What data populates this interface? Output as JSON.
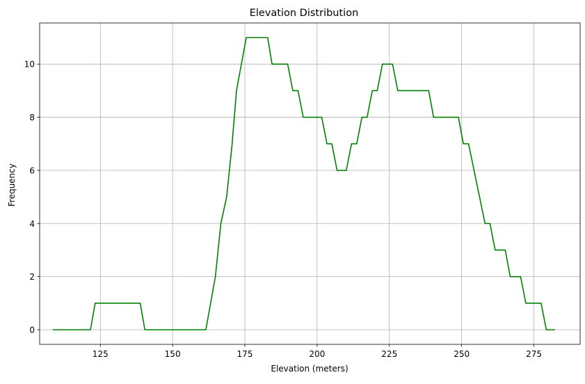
{
  "chart_data": {
    "type": "line",
    "title": "Elevation Distribution",
    "xlabel": "Elevation (meters)",
    "ylabel": "Frequency",
    "xlim": [
      104,
      291
    ],
    "ylim": [
      -0.55,
      11.55
    ],
    "xticks": [
      125,
      150,
      175,
      200,
      225,
      250,
      275
    ],
    "yticks": [
      0,
      2,
      4,
      6,
      8,
      10
    ],
    "grid": true,
    "legend": "none",
    "series": [
      {
        "color": "#008000",
        "points": [
          [
            108.7,
            0
          ],
          [
            121.6,
            0
          ],
          [
            123.2,
            1
          ],
          [
            138.8,
            1
          ],
          [
            140.4,
            0
          ],
          [
            161.5,
            0
          ],
          [
            164.8,
            2
          ],
          [
            166.7,
            4
          ],
          [
            168.7,
            5
          ],
          [
            170.6,
            7
          ],
          [
            172.1,
            9
          ],
          [
            175.5,
            11
          ],
          [
            182.9,
            11
          ],
          [
            184.4,
            10
          ],
          [
            189.8,
            10
          ],
          [
            191.6,
            9
          ],
          [
            193.4,
            9
          ],
          [
            195.2,
            8
          ],
          [
            201.6,
            8
          ],
          [
            203.4,
            7
          ],
          [
            205.1,
            7
          ],
          [
            206.9,
            6
          ],
          [
            210.1,
            6
          ],
          [
            211.9,
            7
          ],
          [
            213.7,
            7
          ],
          [
            215.5,
            8
          ],
          [
            217.3,
            8
          ],
          [
            219.1,
            9
          ],
          [
            220.8,
            9
          ],
          [
            222.6,
            10
          ],
          [
            226.1,
            10
          ],
          [
            227.9,
            9
          ],
          [
            238.6,
            9
          ],
          [
            240.3,
            8
          ],
          [
            248.9,
            8
          ],
          [
            250.6,
            7
          ],
          [
            252.4,
            7
          ],
          [
            258.1,
            4
          ],
          [
            259.8,
            4
          ],
          [
            261.6,
            3
          ],
          [
            265.1,
            3
          ],
          [
            266.8,
            2
          ],
          [
            270.4,
            2
          ],
          [
            272.2,
            1
          ],
          [
            277.5,
            1
          ],
          [
            279.3,
            0
          ],
          [
            282.1,
            0
          ]
        ]
      }
    ]
  }
}
